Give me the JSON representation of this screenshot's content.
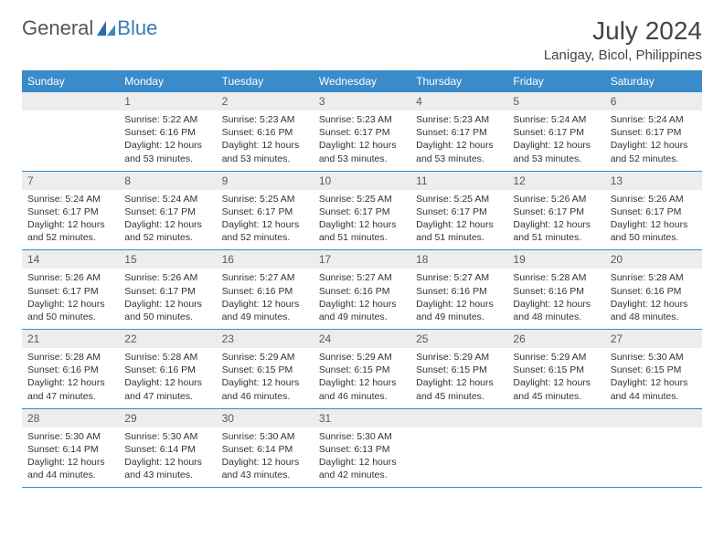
{
  "brand": {
    "part1": "General",
    "part2": "Blue"
  },
  "title": "July 2024",
  "location": "Lanigay, Bicol, Philippines",
  "colors": {
    "header_bg": "#3a8bc9",
    "header_text": "#ffffff",
    "daynum_bg": "#eceded",
    "rule": "#3a8bc9",
    "body_text": "#333333",
    "brand_gray": "#555555",
    "brand_blue": "#3a7ab8"
  },
  "typography": {
    "title_fontsize": 28,
    "location_fontsize": 15,
    "header_fontsize": 12,
    "daynum_fontsize": 12,
    "cell_fontsize": 10.5
  },
  "day_labels": [
    "Sunday",
    "Monday",
    "Tuesday",
    "Wednesday",
    "Thursday",
    "Friday",
    "Saturday"
  ],
  "weeks": [
    [
      {
        "num": "",
        "lines": []
      },
      {
        "num": "1",
        "lines": [
          "Sunrise: 5:22 AM",
          "Sunset: 6:16 PM",
          "Daylight: 12 hours",
          "and 53 minutes."
        ]
      },
      {
        "num": "2",
        "lines": [
          "Sunrise: 5:23 AM",
          "Sunset: 6:16 PM",
          "Daylight: 12 hours",
          "and 53 minutes."
        ]
      },
      {
        "num": "3",
        "lines": [
          "Sunrise: 5:23 AM",
          "Sunset: 6:17 PM",
          "Daylight: 12 hours",
          "and 53 minutes."
        ]
      },
      {
        "num": "4",
        "lines": [
          "Sunrise: 5:23 AM",
          "Sunset: 6:17 PM",
          "Daylight: 12 hours",
          "and 53 minutes."
        ]
      },
      {
        "num": "5",
        "lines": [
          "Sunrise: 5:24 AM",
          "Sunset: 6:17 PM",
          "Daylight: 12 hours",
          "and 53 minutes."
        ]
      },
      {
        "num": "6",
        "lines": [
          "Sunrise: 5:24 AM",
          "Sunset: 6:17 PM",
          "Daylight: 12 hours",
          "and 52 minutes."
        ]
      }
    ],
    [
      {
        "num": "7",
        "lines": [
          "Sunrise: 5:24 AM",
          "Sunset: 6:17 PM",
          "Daylight: 12 hours",
          "and 52 minutes."
        ]
      },
      {
        "num": "8",
        "lines": [
          "Sunrise: 5:24 AM",
          "Sunset: 6:17 PM",
          "Daylight: 12 hours",
          "and 52 minutes."
        ]
      },
      {
        "num": "9",
        "lines": [
          "Sunrise: 5:25 AM",
          "Sunset: 6:17 PM",
          "Daylight: 12 hours",
          "and 52 minutes."
        ]
      },
      {
        "num": "10",
        "lines": [
          "Sunrise: 5:25 AM",
          "Sunset: 6:17 PM",
          "Daylight: 12 hours",
          "and 51 minutes."
        ]
      },
      {
        "num": "11",
        "lines": [
          "Sunrise: 5:25 AM",
          "Sunset: 6:17 PM",
          "Daylight: 12 hours",
          "and 51 minutes."
        ]
      },
      {
        "num": "12",
        "lines": [
          "Sunrise: 5:26 AM",
          "Sunset: 6:17 PM",
          "Daylight: 12 hours",
          "and 51 minutes."
        ]
      },
      {
        "num": "13",
        "lines": [
          "Sunrise: 5:26 AM",
          "Sunset: 6:17 PM",
          "Daylight: 12 hours",
          "and 50 minutes."
        ]
      }
    ],
    [
      {
        "num": "14",
        "lines": [
          "Sunrise: 5:26 AM",
          "Sunset: 6:17 PM",
          "Daylight: 12 hours",
          "and 50 minutes."
        ]
      },
      {
        "num": "15",
        "lines": [
          "Sunrise: 5:26 AM",
          "Sunset: 6:17 PM",
          "Daylight: 12 hours",
          "and 50 minutes."
        ]
      },
      {
        "num": "16",
        "lines": [
          "Sunrise: 5:27 AM",
          "Sunset: 6:16 PM",
          "Daylight: 12 hours",
          "and 49 minutes."
        ]
      },
      {
        "num": "17",
        "lines": [
          "Sunrise: 5:27 AM",
          "Sunset: 6:16 PM",
          "Daylight: 12 hours",
          "and 49 minutes."
        ]
      },
      {
        "num": "18",
        "lines": [
          "Sunrise: 5:27 AM",
          "Sunset: 6:16 PM",
          "Daylight: 12 hours",
          "and 49 minutes."
        ]
      },
      {
        "num": "19",
        "lines": [
          "Sunrise: 5:28 AM",
          "Sunset: 6:16 PM",
          "Daylight: 12 hours",
          "and 48 minutes."
        ]
      },
      {
        "num": "20",
        "lines": [
          "Sunrise: 5:28 AM",
          "Sunset: 6:16 PM",
          "Daylight: 12 hours",
          "and 48 minutes."
        ]
      }
    ],
    [
      {
        "num": "21",
        "lines": [
          "Sunrise: 5:28 AM",
          "Sunset: 6:16 PM",
          "Daylight: 12 hours",
          "and 47 minutes."
        ]
      },
      {
        "num": "22",
        "lines": [
          "Sunrise: 5:28 AM",
          "Sunset: 6:16 PM",
          "Daylight: 12 hours",
          "and 47 minutes."
        ]
      },
      {
        "num": "23",
        "lines": [
          "Sunrise: 5:29 AM",
          "Sunset: 6:15 PM",
          "Daylight: 12 hours",
          "and 46 minutes."
        ]
      },
      {
        "num": "24",
        "lines": [
          "Sunrise: 5:29 AM",
          "Sunset: 6:15 PM",
          "Daylight: 12 hours",
          "and 46 minutes."
        ]
      },
      {
        "num": "25",
        "lines": [
          "Sunrise: 5:29 AM",
          "Sunset: 6:15 PM",
          "Daylight: 12 hours",
          "and 45 minutes."
        ]
      },
      {
        "num": "26",
        "lines": [
          "Sunrise: 5:29 AM",
          "Sunset: 6:15 PM",
          "Daylight: 12 hours",
          "and 45 minutes."
        ]
      },
      {
        "num": "27",
        "lines": [
          "Sunrise: 5:30 AM",
          "Sunset: 6:15 PM",
          "Daylight: 12 hours",
          "and 44 minutes."
        ]
      }
    ],
    [
      {
        "num": "28",
        "lines": [
          "Sunrise: 5:30 AM",
          "Sunset: 6:14 PM",
          "Daylight: 12 hours",
          "and 44 minutes."
        ]
      },
      {
        "num": "29",
        "lines": [
          "Sunrise: 5:30 AM",
          "Sunset: 6:14 PM",
          "Daylight: 12 hours",
          "and 43 minutes."
        ]
      },
      {
        "num": "30",
        "lines": [
          "Sunrise: 5:30 AM",
          "Sunset: 6:14 PM",
          "Daylight: 12 hours",
          "and 43 minutes."
        ]
      },
      {
        "num": "31",
        "lines": [
          "Sunrise: 5:30 AM",
          "Sunset: 6:13 PM",
          "Daylight: 12 hours",
          "and 42 minutes."
        ]
      },
      {
        "num": "",
        "lines": []
      },
      {
        "num": "",
        "lines": []
      },
      {
        "num": "",
        "lines": []
      }
    ]
  ]
}
